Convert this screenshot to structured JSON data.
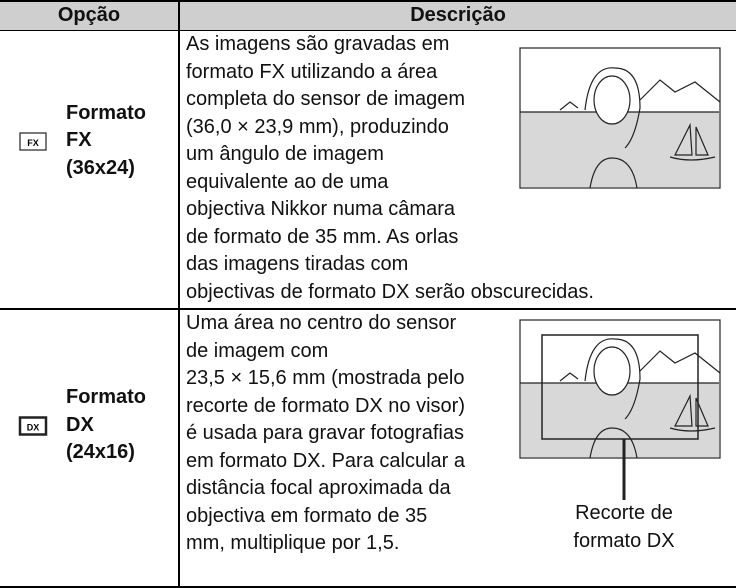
{
  "header": {
    "option": "Opção",
    "description": "Descrição"
  },
  "rows": [
    {
      "icon": "FX",
      "option": [
        "Formato",
        "FX",
        "(36x24)"
      ],
      "description": [
        "As imagens são gravadas em",
        "formato FX utilizando a área",
        "completa do sensor de imagem",
        "(36,0 × 23,9 mm), produzindo",
        "um ângulo de imagem",
        "equivalente ao de uma",
        "objectiva Nikkor numa câmara",
        "de formato de 35 mm.  As orlas",
        "das imagens tiradas com",
        "objectivas de formato DX serão obscurecidas."
      ]
    },
    {
      "icon": "DX",
      "option": [
        "Formato",
        "DX",
        "(24x16)"
      ],
      "description": [
        "Uma área no centro do sensor",
        "de imagem com",
        "23,5 × 15,6 mm (mostrada pelo",
        "recorte de formato DX no visor)",
        "é usada para gravar fotografias",
        "em formato DX.  Para calcular a",
        "distância focal aproximada da",
        "objectiva em formato de 35",
        "mm, multiplique por 1,5."
      ],
      "caption": [
        "Recorte de",
        "formato DX"
      ]
    }
  ]
}
